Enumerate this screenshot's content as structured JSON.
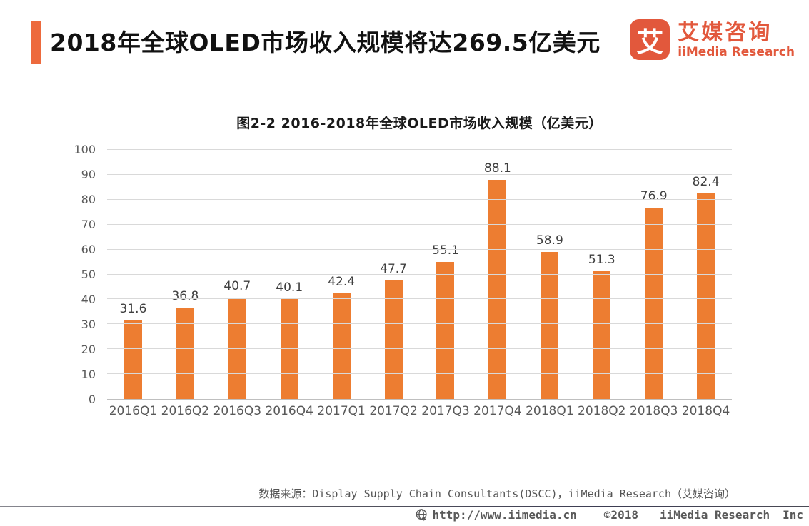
{
  "header": {
    "title": "2018年全球OLED市场收入规模将达269.5亿美元"
  },
  "logo": {
    "glyph": "艾",
    "name_cn": "艾媒咨询",
    "name_en": "iiMedia Research"
  },
  "chart_data": {
    "type": "bar",
    "title": "图2-2 2016-2018年全球OLED市场收入规模（亿美元）",
    "categories": [
      "2016Q1",
      "2016Q2",
      "2016Q3",
      "2016Q4",
      "2017Q1",
      "2017Q2",
      "2017Q3",
      "2017Q4",
      "2018Q1",
      "2018Q2",
      "2018Q3",
      "2018Q4"
    ],
    "values": [
      31.6,
      36.8,
      40.7,
      40.1,
      42.4,
      47.7,
      55.1,
      88.1,
      58.9,
      51.3,
      76.9,
      82.4
    ],
    "xlabel": "",
    "ylabel": "",
    "ylim": [
      0,
      100
    ],
    "ytick_interval": 10,
    "grid": true,
    "legend": "none",
    "bar_color": "#ED7D31",
    "value_labels": true
  },
  "source_note": "数据来源：Display Supply Chain Consultants(DSCC)，iiMedia Research（艾媒咨询）",
  "footer": {
    "url": "http://www.iimedia.cn",
    "copyright": "©2018",
    "company": "iiMedia Research",
    "suffix": "Inc"
  },
  "colors": {
    "accent_orange": "#ED6A3D",
    "logo_orange": "#E2583C",
    "bar_orange": "#ED7D31",
    "gridline": "#D9D9D9",
    "axis_text": "#595959"
  }
}
